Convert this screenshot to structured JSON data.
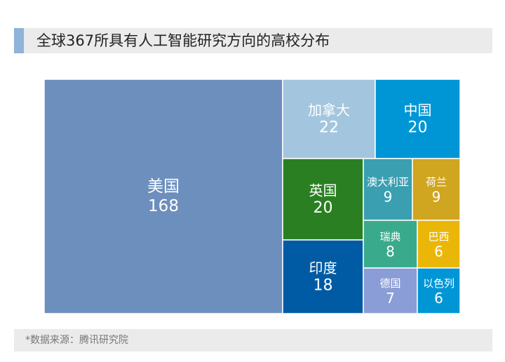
{
  "header": {
    "title": "全球367所具有人工智能研究方向的高校分布"
  },
  "footer": {
    "source": "*数据来源：腾讯研究院"
  },
  "chart_data": {
    "type": "treemap",
    "title": "全球367所具有人工智能研究方向的高校分布",
    "total": 367,
    "items": [
      {
        "name": "美国",
        "value": 168,
        "color": "#6d8fbd"
      },
      {
        "name": "加拿大",
        "value": 22,
        "color": "#a3c6de"
      },
      {
        "name": "中国",
        "value": 20,
        "color": "#0096d6"
      },
      {
        "name": "英国",
        "value": 20,
        "color": "#2a7f22"
      },
      {
        "name": "印度",
        "value": 18,
        "color": "#005ba4"
      },
      {
        "name": "澳大利亚",
        "value": 9,
        "color": "#3a9fb0"
      },
      {
        "name": "荷兰",
        "value": 9,
        "color": "#d0a51f"
      },
      {
        "name": "瑞典",
        "value": 8,
        "color": "#3aaa8c"
      },
      {
        "name": "巴西",
        "value": 6,
        "color": "#eab709"
      },
      {
        "name": "德国",
        "value": 7,
        "color": "#8a9dd6"
      },
      {
        "name": "以色列",
        "value": 6,
        "color": "#0096d6"
      }
    ]
  }
}
